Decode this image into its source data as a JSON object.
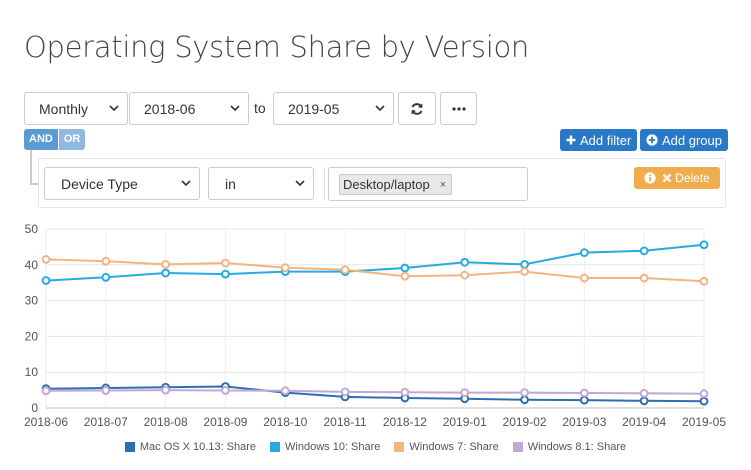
{
  "page": {
    "title": "Operating System Share by Version"
  },
  "controls": {
    "granularity": "Monthly",
    "from": "2018-06",
    "to_label": "to",
    "to": "2019-05",
    "refresh_icon": "refresh-icon",
    "more_icon": "ellipsis-icon"
  },
  "filter": {
    "and_label": "AND",
    "or_label": "OR",
    "add_filter_label": "Add filter",
    "add_group_label": "Add group",
    "delete_label": "Delete",
    "field": "Device Type",
    "operator": "in",
    "value_tag": "Desktop/laptop",
    "tag_remove": "×"
  },
  "chart_data": {
    "type": "line",
    "categories": [
      "2018-06",
      "2018-07",
      "2018-08",
      "2018-09",
      "2018-10",
      "2018-11",
      "2018-12",
      "2019-01",
      "2019-02",
      "2019-03",
      "2019-04",
      "2019-05"
    ],
    "ylim": [
      0,
      50
    ],
    "yticks": [
      0,
      10,
      20,
      30,
      40,
      50
    ],
    "grid": true,
    "legend_position": "bottom",
    "series": [
      {
        "name": "Mac OS X 10.13: Share",
        "color": "#2f6fb0",
        "values": [
          5.4,
          5.6,
          5.8,
          6.0,
          4.3,
          3.1,
          2.8,
          2.6,
          2.3,
          2.2,
          2.0,
          1.9
        ]
      },
      {
        "name": "Windows 10: Share",
        "color": "#27aae1",
        "values": [
          35.6,
          36.5,
          37.7,
          37.4,
          38.1,
          38.1,
          39.1,
          40.7,
          40.1,
          43.4,
          43.9,
          45.6
        ]
      },
      {
        "name": "Windows 7: Share",
        "color": "#f2b582",
        "values": [
          41.5,
          41.0,
          40.1,
          40.5,
          39.2,
          38.6,
          36.8,
          37.1,
          38.1,
          36.3,
          36.3,
          35.4
        ]
      },
      {
        "name": "Windows 8.1: Share",
        "color": "#bfa9d6",
        "values": [
          4.8,
          4.9,
          5.0,
          4.9,
          4.8,
          4.5,
          4.4,
          4.3,
          4.3,
          4.2,
          4.1,
          4.0
        ]
      }
    ]
  }
}
